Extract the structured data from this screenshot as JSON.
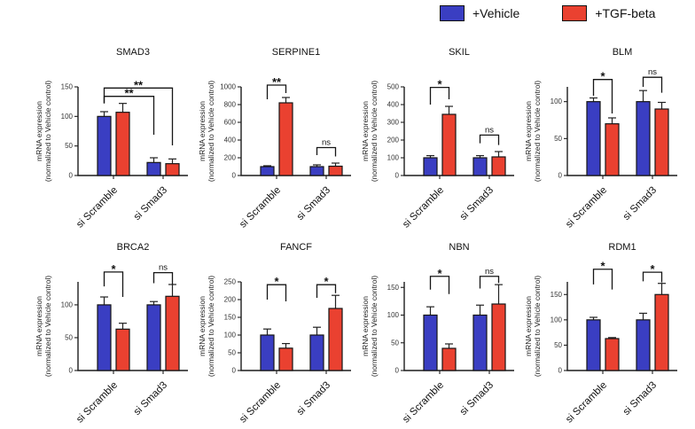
{
  "figure": {
    "background": "#ffffff"
  },
  "colors": {
    "vehicle": "#3a3ec2",
    "tgf_beta": "#ea4130",
    "axis": "#1c1c1c"
  },
  "legend": {
    "items": [
      {
        "name": "vehicle",
        "label": "+Vehicle",
        "color": "#3a3ec2"
      },
      {
        "name": "tgf-beta",
        "label": "+TGF-beta",
        "color": "#ea4130"
      }
    ]
  },
  "axis": {
    "ylabel_line1": "mRNA expression",
    "ylabel_line2": "(normalized to Vehicle control)"
  },
  "chart_data": [
    {
      "type": "bar",
      "title": "SMAD3",
      "categories": [
        "si Scramble",
        "si Smad3"
      ],
      "ylabel": "mRNA expression (normalized to Vehicle control)",
      "ylim": [
        0,
        150
      ],
      "yticks": [
        0,
        50,
        100,
        150
      ],
      "series": [
        {
          "name": "+Vehicle",
          "color": "#3a3ec2",
          "values": [
            100,
            22
          ],
          "errors": [
            8,
            8
          ]
        },
        {
          "name": "+TGF-beta",
          "color": "#ea4130",
          "values": [
            107,
            20
          ],
          "errors": [
            15,
            8
          ]
        }
      ],
      "significance": [
        {
          "bars": [
            0,
            2
          ],
          "label": "**",
          "y": 134,
          "drop_a": 122,
          "drop_b": 69
        },
        {
          "bars": [
            0,
            3
          ],
          "label": "**",
          "y": 148,
          "drop_a": 122,
          "drop_b": 51
        }
      ]
    },
    {
      "type": "bar",
      "title": "SERPINE1",
      "categories": [
        "si Scramble",
        "si Smad3"
      ],
      "ylabel": "mRNA expression (normalized to Vehicle control)",
      "ylim": [
        0,
        1000
      ],
      "yticks": [
        0,
        200,
        400,
        600,
        800,
        1000
      ],
      "series": [
        {
          "name": "+Vehicle",
          "color": "#3a3ec2",
          "values": [
            100,
            100
          ],
          "errors": [
            10,
            20
          ]
        },
        {
          "name": "+TGF-beta",
          "color": "#ea4130",
          "values": [
            820,
            105
          ],
          "errors": [
            60,
            35
          ]
        }
      ],
      "significance": [
        {
          "bars": [
            0,
            1
          ],
          "label": "**",
          "y": 1020,
          "drop_a": 860,
          "drop_b": 930
        },
        {
          "bars": [
            2,
            3
          ],
          "label": "ns",
          "y": 315,
          "drop_a": 230,
          "drop_b": 215
        }
      ]
    },
    {
      "type": "bar",
      "title": "SKIL",
      "categories": [
        "si Scramble",
        "si Smad3"
      ],
      "ylabel": "mRNA expression (normalized to Vehicle control)",
      "ylim": [
        0,
        500
      ],
      "yticks": [
        0,
        100,
        200,
        300,
        400,
        500
      ],
      "series": [
        {
          "name": "+Vehicle",
          "color": "#3a3ec2",
          "values": [
            100,
            100
          ],
          "errors": [
            12,
            12
          ]
        },
        {
          "name": "+TGF-beta",
          "color": "#ea4130",
          "values": [
            345,
            105
          ],
          "errors": [
            45,
            30
          ]
        }
      ],
      "significance": [
        {
          "bars": [
            0,
            1
          ],
          "label": "*",
          "y": 497,
          "drop_a": 400,
          "drop_b": 430
        },
        {
          "bars": [
            2,
            3
          ],
          "label": "ns",
          "y": 228,
          "drop_a": 182,
          "drop_b": 172
        }
      ]
    },
    {
      "type": "bar",
      "title": "BLM",
      "categories": [
        "si Scramble",
        "si Smad3"
      ],
      "ylabel": "mRNA expression (normalized to Vehicle control)",
      "ylim": [
        0,
        120
      ],
      "yticks": [
        0,
        50,
        100
      ],
      "series": [
        {
          "name": "+Vehicle",
          "color": "#3a3ec2",
          "values": [
            100,
            100
          ],
          "errors": [
            5,
            15
          ]
        },
        {
          "name": "+TGF-beta",
          "color": "#ea4130",
          "values": [
            70,
            90
          ],
          "errors": [
            8,
            9
          ]
        }
      ],
      "significance": [
        {
          "bars": [
            0,
            1
          ],
          "label": "*",
          "y": 130,
          "drop_a": 108,
          "drop_b": 84
        },
        {
          "bars": [
            2,
            3
          ],
          "label": "ns",
          "y": 133,
          "drop_a": 120,
          "drop_b": 112
        }
      ]
    },
    {
      "type": "bar",
      "title": "BRCA2",
      "categories": [
        "si Scramble",
        "si Smad3"
      ],
      "ylabel": "mRNA expression (normalized to Vehicle control)",
      "ylim": [
        0,
        135
      ],
      "yticks": [
        0,
        50,
        100
      ],
      "series": [
        {
          "name": "+Vehicle",
          "color": "#3a3ec2",
          "values": [
            100,
            100
          ],
          "errors": [
            12,
            5
          ]
        },
        {
          "name": "+TGF-beta",
          "color": "#ea4130",
          "values": [
            63,
            113
          ],
          "errors": [
            9,
            18
          ]
        }
      ],
      "significance": [
        {
          "bars": [
            0,
            1
          ],
          "label": "*",
          "y": 150,
          "drop_a": 128,
          "drop_b": 112
        },
        {
          "bars": [
            2,
            3
          ],
          "label": "ns",
          "y": 149,
          "drop_a": 133,
          "drop_b": 131
        }
      ]
    },
    {
      "type": "bar",
      "title": "FANCF",
      "categories": [
        "si Scramble",
        "si Smad3"
      ],
      "ylabel": "mRNA expression (normalized to Vehicle control)",
      "ylim": [
        0,
        250
      ],
      "yticks": [
        0,
        50,
        100,
        150,
        200,
        250
      ],
      "series": [
        {
          "name": "+Vehicle",
          "color": "#3a3ec2",
          "values": [
            100,
            100
          ],
          "errors": [
            17,
            22
          ]
        },
        {
          "name": "+TGF-beta",
          "color": "#ea4130",
          "values": [
            63,
            175
          ],
          "errors": [
            13,
            37
          ]
        }
      ],
      "significance": [
        {
          "bars": [
            0,
            1
          ],
          "label": "*",
          "y": 242,
          "drop_a": 200,
          "drop_b": 195
        },
        {
          "bars": [
            2,
            3
          ],
          "label": "*",
          "y": 242,
          "drop_a": 205,
          "drop_b": 218
        }
      ]
    },
    {
      "type": "bar",
      "title": "NBN",
      "categories": [
        "si Scramble",
        "si Smad3"
      ],
      "ylabel": "mRNA expression (normalized to Vehicle control)",
      "ylim": [
        0,
        160
      ],
      "yticks": [
        0,
        50,
        100,
        150
      ],
      "series": [
        {
          "name": "+Vehicle",
          "color": "#3a3ec2",
          "values": [
            100,
            100
          ],
          "errors": [
            15,
            18
          ]
        },
        {
          "name": "+TGF-beta",
          "color": "#ea4130",
          "values": [
            40,
            120
          ],
          "errors": [
            8,
            35
          ]
        }
      ],
      "significance": [
        {
          "bars": [
            0,
            1
          ],
          "label": "*",
          "y": 170,
          "drop_a": 146,
          "drop_b": 138
        },
        {
          "bars": [
            2,
            3
          ],
          "label": "ns",
          "y": 170,
          "drop_a": 148,
          "drop_b": 158
        }
      ]
    },
    {
      "type": "bar",
      "title": "RDM1",
      "categories": [
        "si Scramble",
        "si Smad3"
      ],
      "ylabel": "mRNA expression (normalized to Vehicle control)",
      "ylim": [
        0,
        175
      ],
      "yticks": [
        0,
        50,
        100,
        150
      ],
      "series": [
        {
          "name": "+Vehicle",
          "color": "#3a3ec2",
          "values": [
            100,
            100
          ],
          "errors": [
            5,
            13
          ]
        },
        {
          "name": "+TGF-beta",
          "color": "#ea4130",
          "values": [
            63,
            150
          ],
          "errors": [
            2,
            22
          ]
        }
      ],
      "significance": [
        {
          "bars": [
            0,
            1
          ],
          "label": "*",
          "y": 200,
          "drop_a": 170,
          "drop_b": 160
        },
        {
          "bars": [
            2,
            3
          ],
          "label": "*",
          "y": 194,
          "drop_a": 176,
          "drop_b": 174
        }
      ]
    }
  ]
}
